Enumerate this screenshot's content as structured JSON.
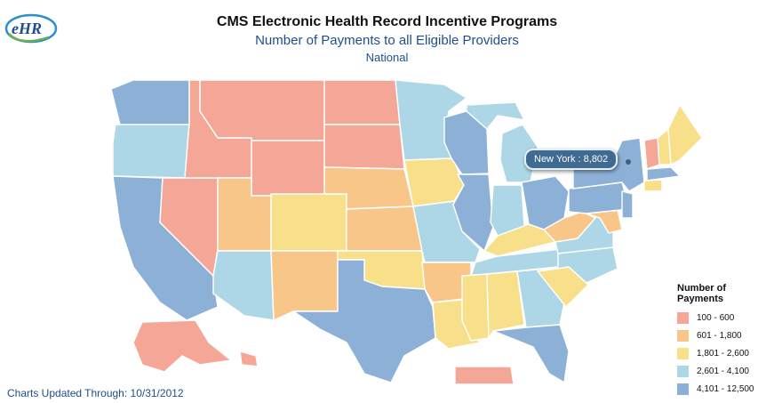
{
  "header": {
    "title": "CMS Electronic Health Record Incentive Programs",
    "subtitle": "Number of Payments to all Eligible Providers",
    "region": "National"
  },
  "logo": {
    "text": "eHR",
    "icon": "ehr-logo"
  },
  "tooltip": {
    "text": "New York : 8,802"
  },
  "legend": {
    "title": "Number of Payments",
    "items": [
      {
        "label": "100 - 600",
        "color": "#f4a796"
      },
      {
        "label": "601 - 1,800",
        "color": "#f9c68a"
      },
      {
        "label": "1,801 - 2,600",
        "color": "#f8e08a"
      },
      {
        "label": "2,601 - 4,100",
        "color": "#add7e6"
      },
      {
        "label": "4,101 - 12,500",
        "color": "#8db1d6"
      }
    ]
  },
  "footer": {
    "text": "Charts Updated Through: 10/31/2012"
  },
  "colors": {
    "c1": "#f4a796",
    "c2": "#f9c68a",
    "c3": "#f8e08a",
    "c4": "#add7e6",
    "c5": "#8db1d6",
    "title_blue": "#1f4e8c"
  }
}
